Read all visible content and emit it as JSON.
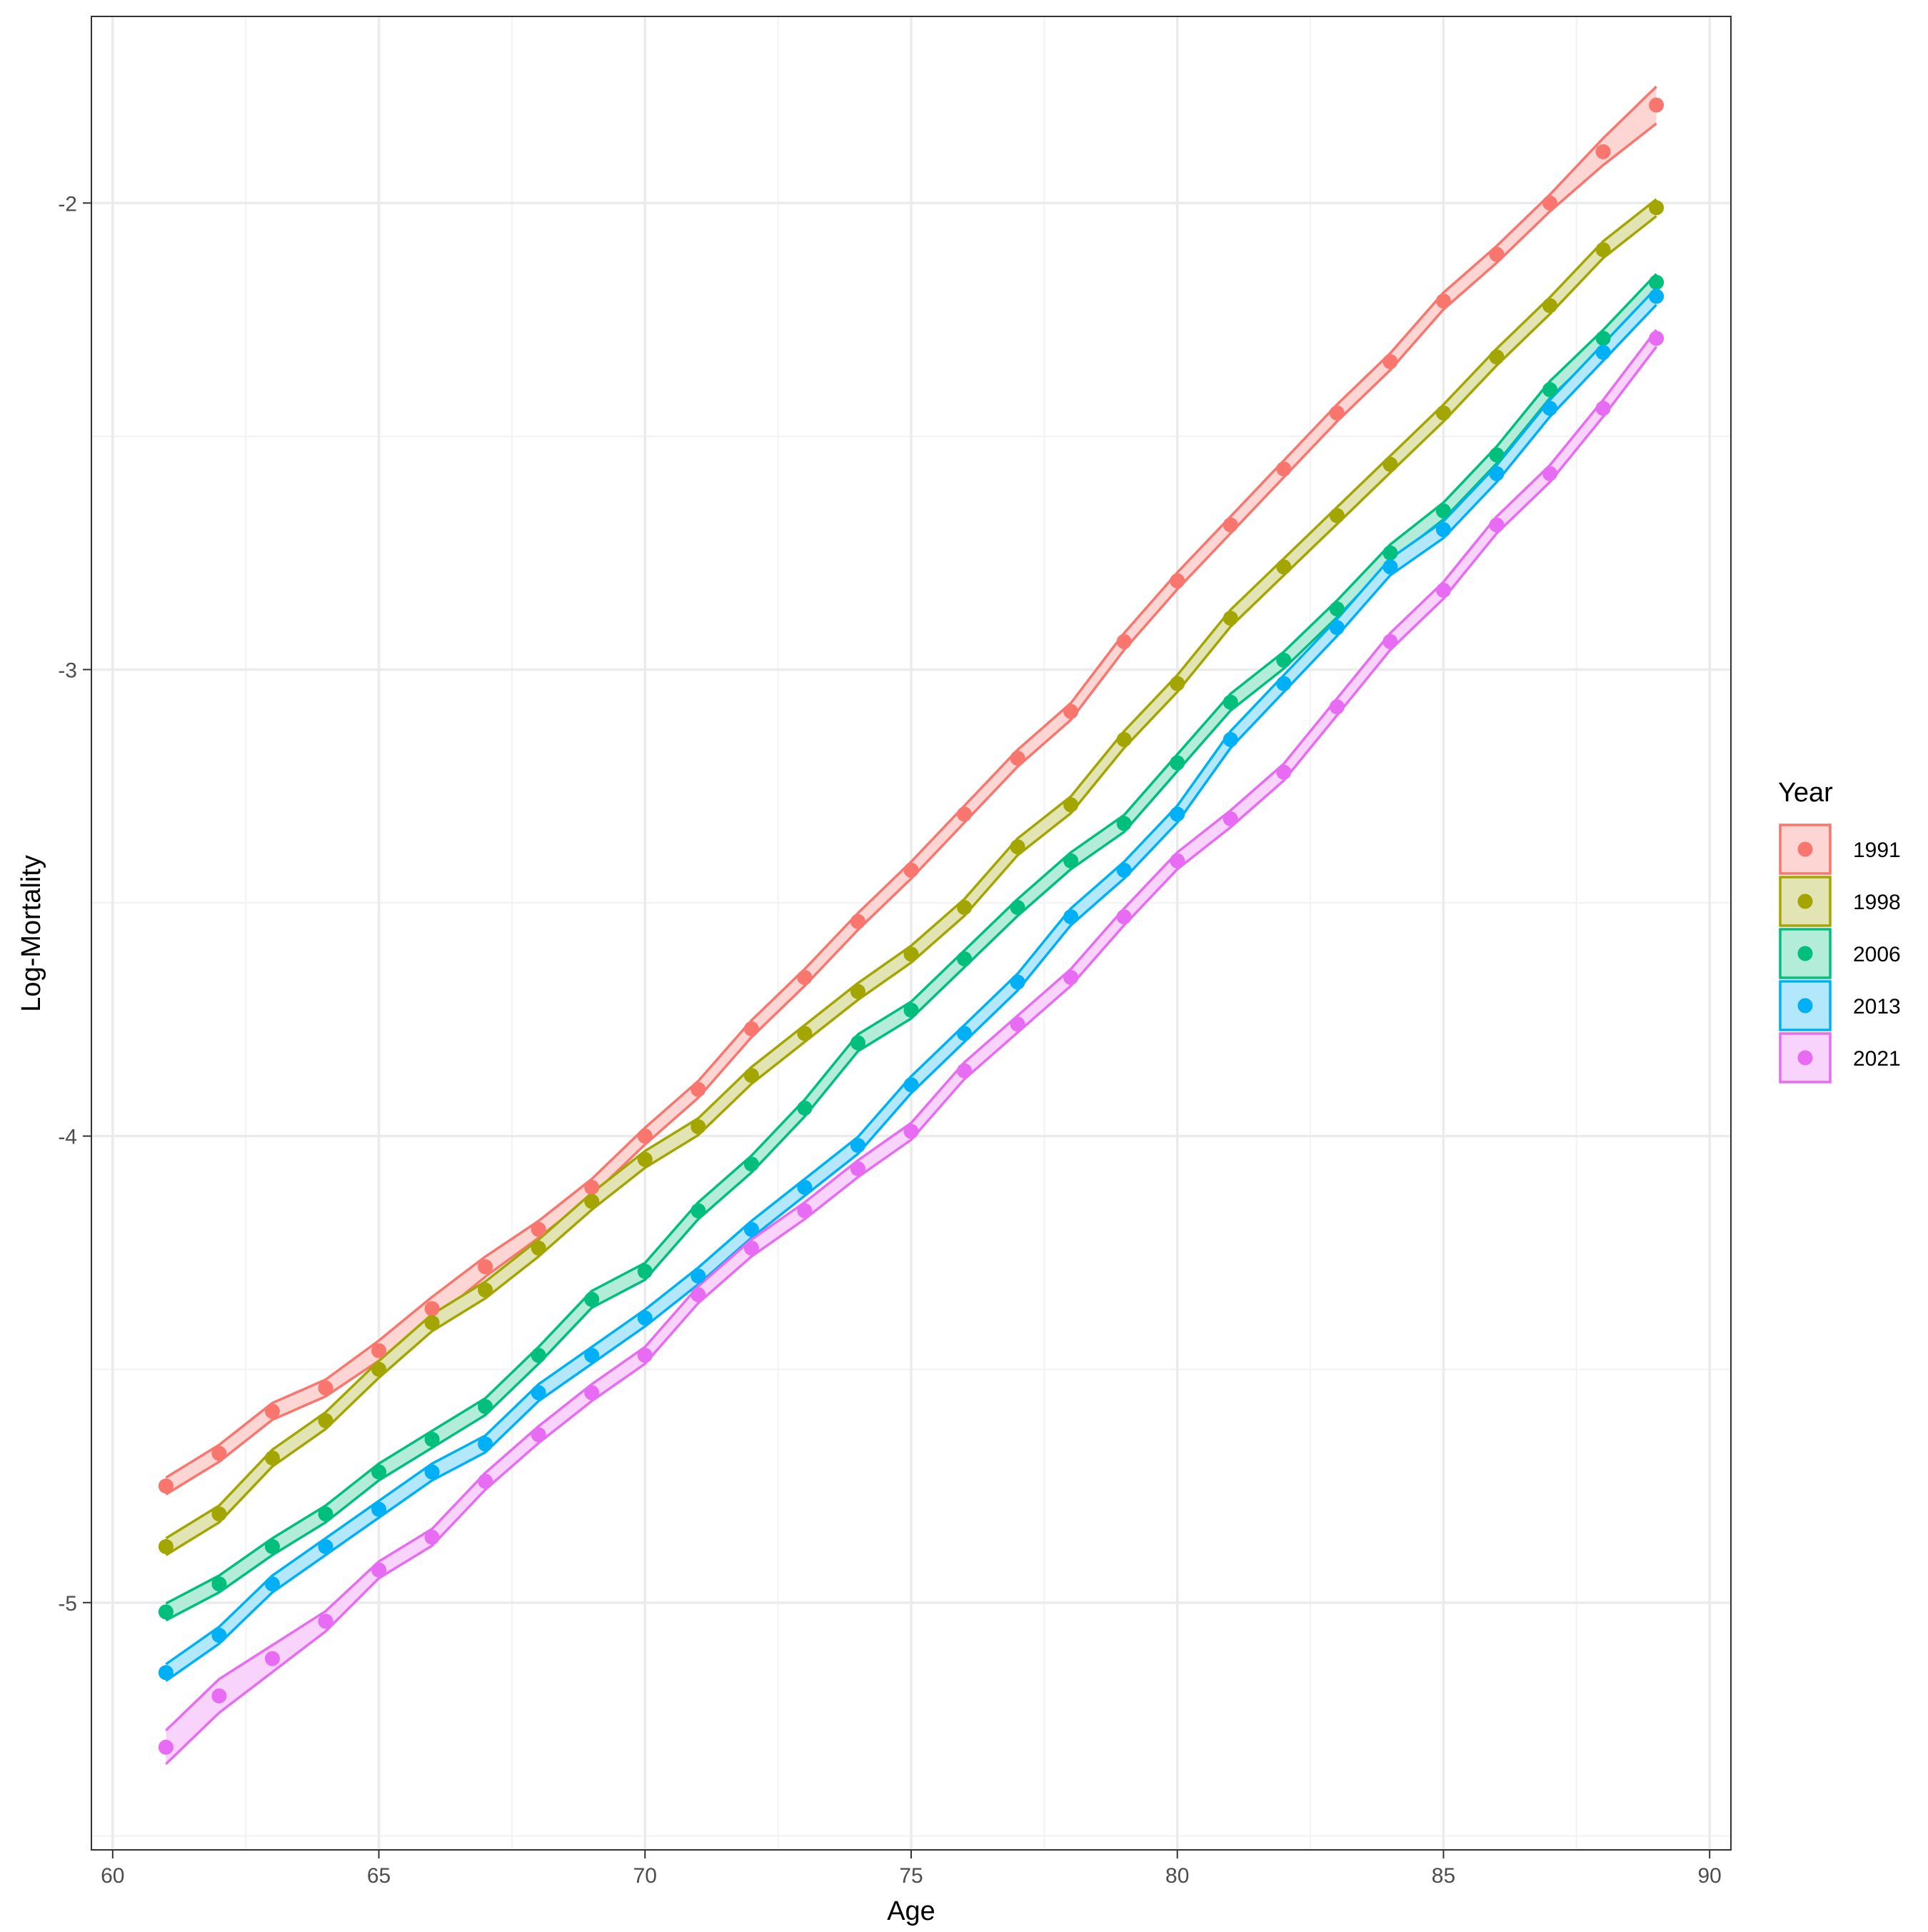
{
  "chart_data": {
    "type": "line",
    "title": "",
    "xlabel": "Age",
    "ylabel": "Log-Mortality",
    "xlim": [
      59.6,
      90.4
    ],
    "ylim": [
      -5.53,
      -1.6
    ],
    "xticks": [
      60,
      65,
      70,
      75,
      80,
      85,
      90
    ],
    "yticks": [
      -5,
      -4,
      -3,
      -2
    ],
    "xtick_labels": [
      "60",
      "65",
      "70",
      "75",
      "80",
      "85",
      "90"
    ],
    "ytick_labels": [
      "-5",
      "-4",
      "-3",
      "-2"
    ],
    "grid": true,
    "legend": {
      "title": "Year",
      "position": "right"
    },
    "band_half_width": 0.018,
    "x": [
      61,
      62,
      63,
      64,
      65,
      66,
      67,
      68,
      69,
      70,
      71,
      72,
      73,
      74,
      75,
      76,
      77,
      78,
      79,
      80,
      81,
      82,
      83,
      84,
      85,
      86,
      87,
      88,
      89
    ],
    "series": [
      {
        "name": "1991",
        "color": "#F8766D",
        "band_scale": [
          1.0,
          1.0,
          1.0,
          1.0,
          1.2,
          1.4,
          1.2,
          1.0,
          1.0,
          1.0,
          1.0,
          1.0,
          1.0,
          1.0,
          1.0,
          1.0,
          1.0,
          1.0,
          1.0,
          1.0,
          1.0,
          1.0,
          1.0,
          1.0,
          1.0,
          1.0,
          1.0,
          1.6,
          2.2
        ],
        "values": [
          -4.75,
          -4.68,
          -4.59,
          -4.54,
          -4.46,
          -4.37,
          -4.28,
          -4.2,
          -4.11,
          -4.0,
          -3.9,
          -3.77,
          -3.66,
          -3.54,
          -3.43,
          -3.31,
          -3.19,
          -3.09,
          -2.94,
          -2.81,
          -2.69,
          -2.57,
          -2.45,
          -2.34,
          -2.21,
          -2.11,
          -2.0,
          -1.89,
          -1.79
        ]
      },
      {
        "name": "1998",
        "color": "#A3A500",
        "band_scale": [
          1.0,
          1.0,
          1.0,
          1.0,
          1.0,
          1.0,
          1.0,
          1.0,
          1.0,
          1.0,
          1.0,
          1.0,
          1.0,
          1.0,
          1.0,
          1.0,
          1.0,
          1.0,
          1.0,
          1.0,
          1.0,
          1.0,
          1.0,
          1.0,
          1.0,
          1.0,
          1.0,
          1.0,
          1.0
        ],
        "values": [
          -4.88,
          -4.81,
          -4.69,
          -4.61,
          -4.5,
          -4.4,
          -4.33,
          -4.24,
          -4.14,
          -4.05,
          -3.98,
          -3.87,
          -3.78,
          -3.69,
          -3.61,
          -3.51,
          -3.38,
          -3.29,
          -3.15,
          -3.03,
          -2.89,
          -2.78,
          -2.67,
          -2.56,
          -2.45,
          -2.33,
          -2.22,
          -2.1,
          -2.01
        ]
      },
      {
        "name": "2006",
        "color": "#00BF7D",
        "band_scale": [
          1.0,
          1.0,
          1.0,
          1.0,
          1.0,
          1.0,
          1.0,
          1.0,
          1.0,
          1.0,
          1.0,
          1.0,
          1.0,
          1.0,
          1.0,
          1.0,
          1.0,
          1.0,
          1.0,
          1.0,
          1.0,
          1.0,
          1.0,
          1.0,
          1.0,
          1.0,
          1.0,
          1.0,
          1.0
        ],
        "values": [
          -5.02,
          -4.96,
          -4.88,
          -4.81,
          -4.72,
          -4.65,
          -4.58,
          -4.47,
          -4.35,
          -4.29,
          -4.16,
          -4.06,
          -3.94,
          -3.8,
          -3.73,
          -3.62,
          -3.51,
          -3.41,
          -3.33,
          -3.2,
          -3.07,
          -2.98,
          -2.87,
          -2.75,
          -2.66,
          -2.54,
          -2.4,
          -2.29,
          -2.17
        ]
      },
      {
        "name": "2013",
        "color": "#00B0F6",
        "band_scale": [
          1.0,
          1.0,
          1.0,
          1.0,
          1.0,
          1.0,
          1.0,
          1.0,
          1.0,
          1.0,
          1.0,
          1.0,
          1.0,
          1.0,
          1.0,
          1.0,
          1.0,
          1.0,
          1.0,
          1.0,
          1.0,
          1.0,
          1.0,
          1.0,
          1.0,
          1.0,
          1.0,
          1.0,
          1.0
        ],
        "values": [
          -5.15,
          -5.07,
          -4.96,
          -4.88,
          -4.8,
          -4.72,
          -4.66,
          -4.55,
          -4.47,
          -4.39,
          -4.3,
          -4.2,
          -4.11,
          -4.02,
          -3.89,
          -3.78,
          -3.67,
          -3.53,
          -3.43,
          -3.31,
          -3.15,
          -3.03,
          -2.91,
          -2.78,
          -2.7,
          -2.58,
          -2.44,
          -2.32,
          -2.2
        ]
      },
      {
        "name": "2021",
        "color": "#E76BF3",
        "band_scale": [
          2.0,
          2.0,
          1.6,
          1.2,
          1.0,
          1.0,
          1.0,
          1.0,
          1.0,
          1.0,
          1.0,
          1.0,
          1.0,
          1.0,
          1.0,
          1.0,
          1.0,
          1.0,
          1.0,
          1.0,
          1.0,
          1.0,
          1.0,
          1.0,
          1.0,
          1.0,
          1.0,
          1.0,
          1.0
        ],
        "values": [
          -5.31,
          -5.2,
          -5.12,
          -5.04,
          -4.93,
          -4.86,
          -4.74,
          -4.64,
          -4.55,
          -4.47,
          -4.34,
          -4.24,
          -4.16,
          -4.07,
          -3.99,
          -3.86,
          -3.76,
          -3.66,
          -3.53,
          -3.41,
          -3.32,
          -3.22,
          -3.08,
          -2.94,
          -2.83,
          -2.69,
          -2.58,
          -2.44,
          -2.29
        ]
      }
    ]
  }
}
